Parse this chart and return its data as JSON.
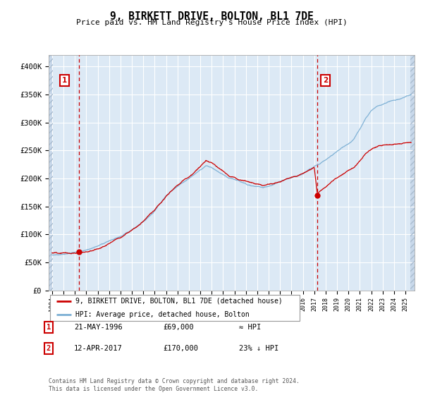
{
  "title": "9, BIRKETT DRIVE, BOLTON, BL1 7DE",
  "subtitle": "Price paid vs. HM Land Registry's House Price Index (HPI)",
  "bg_color": "#ffffff",
  "plot_bg_color": "#dce9f5",
  "grid_color": "#ffffff",
  "red_line_color": "#cc0000",
  "blue_line_color": "#7bafd4",
  "marker_color": "#cc0000",
  "dashed_line_color": "#cc0000",
  "ylim": [
    0,
    420000
  ],
  "yticks": [
    0,
    50000,
    100000,
    150000,
    200000,
    250000,
    300000,
    350000,
    400000
  ],
  "ytick_labels": [
    "£0",
    "£50K",
    "£100K",
    "£150K",
    "£200K",
    "£250K",
    "£300K",
    "£350K",
    "£400K"
  ],
  "legend_label_red": "9, BIRKETT DRIVE, BOLTON, BL1 7DE (detached house)",
  "legend_label_blue": "HPI: Average price, detached house, Bolton",
  "annotation1_label": "1",
  "annotation1_date": "21-MAY-1996",
  "annotation1_price": "£69,000",
  "annotation1_hpi": "≈ HPI",
  "annotation2_label": "2",
  "annotation2_date": "12-APR-2017",
  "annotation2_price": "£170,000",
  "annotation2_hpi": "23% ↓ HPI",
  "footnote": "Contains HM Land Registry data © Crown copyright and database right 2024.\nThis data is licensed under the Open Government Licence v3.0.",
  "sale1_year": 1996.38,
  "sale1_price": 69000,
  "sale2_year": 2017.27,
  "sale2_price": 170000,
  "xmin": 1993.7,
  "xmax": 2025.8
}
